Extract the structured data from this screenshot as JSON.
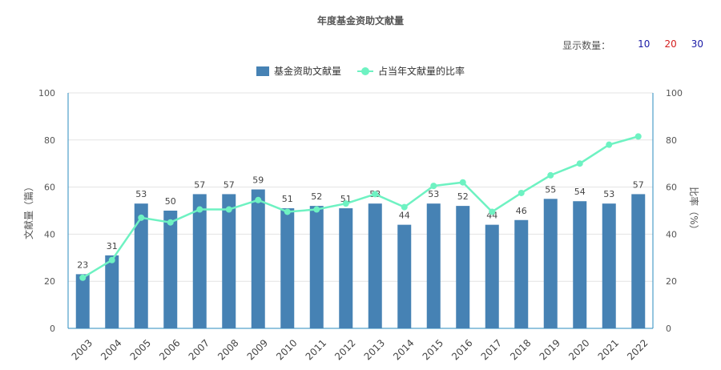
{
  "title": "年度基金资助文献量",
  "count_selector": {
    "label": "显示数量：",
    "options": [
      {
        "label": "10",
        "color": "#1a1aa6"
      },
      {
        "label": "20",
        "color": "#d42020"
      },
      {
        "label": "30",
        "color": "#1a1aa6"
      }
    ]
  },
  "colors": {
    "bar": "#4682b4",
    "line": "#6ef2c2",
    "axis": "#2a8bbf"
  },
  "chart_data": {
    "type": "bar",
    "categories": [
      "2003",
      "2004",
      "2005",
      "2006",
      "2007",
      "2008",
      "2009",
      "2010",
      "2011",
      "2012",
      "2013",
      "2014",
      "2015",
      "2016",
      "2017",
      "2018",
      "2019",
      "2020",
      "2021",
      "2022"
    ],
    "series": [
      {
        "name": "基金资助文献量",
        "type": "bar",
        "axis": "left",
        "values": [
          23,
          31,
          53,
          50,
          57,
          57,
          59,
          51,
          52,
          51,
          53,
          44,
          53,
          52,
          44,
          46,
          55,
          54,
          53,
          57
        ]
      },
      {
        "name": "占当年文献量的比率",
        "type": "line",
        "axis": "right",
        "values": [
          21.5,
          29,
          47,
          45,
          50.5,
          50.5,
          54.5,
          49.5,
          50.5,
          53,
          57,
          51.5,
          60.5,
          62,
          49.5,
          57.5,
          65,
          70,
          78,
          81.5
        ]
      }
    ],
    "ylabel": "文献量（篇）",
    "y2label": "比率（%）",
    "ylim": [
      0,
      100
    ],
    "y2lim": [
      0,
      100
    ],
    "yticks": [
      0,
      20,
      40,
      60,
      80,
      100
    ],
    "grid": true,
    "legend_position": "top-center"
  }
}
